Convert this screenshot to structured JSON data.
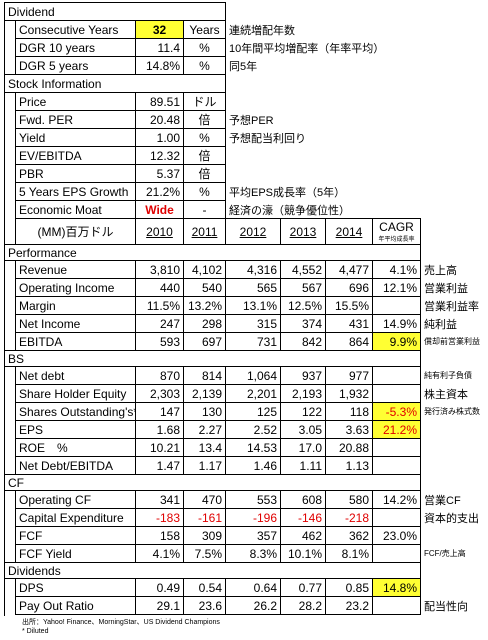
{
  "dividend": {
    "title": "Dividend",
    "rows": [
      {
        "label": "Consecutive Years",
        "value": "32",
        "unit": "Years",
        "note": "連続増配年数",
        "highlight": true
      },
      {
        "label": "DGR 10 years",
        "value": "11.4",
        "unit": "%",
        "note": "10年間平均増配率（年率平均）"
      },
      {
        "label": "DGR 5 years",
        "value": "14.8%",
        "unit": "%",
        "note": "同5年"
      }
    ]
  },
  "stock_information": {
    "title": "Stock Information",
    "rows": [
      {
        "label": "Price",
        "value": "89.51",
        "unit": "ドル"
      },
      {
        "label": "Fwd. PER",
        "value": "20.48",
        "unit": "倍",
        "note": "予想PER"
      },
      {
        "label": "Yield",
        "value": "1.00",
        "unit": "%",
        "note": "予想配当利回り"
      },
      {
        "label": "EV/EBITDA",
        "value": "12.32",
        "unit": "倍"
      },
      {
        "label": "PBR",
        "value": "5.37",
        "unit": "倍"
      },
      {
        "label": "5 Years EPS Growth",
        "value": "21.2%",
        "unit": "%",
        "note": "平均EPS成長率（5年）"
      },
      {
        "label": "Economic Moat",
        "value": "Wide",
        "unit": "-",
        "note": "経済の濠（競争優位性）",
        "color": "#e00000"
      }
    ]
  },
  "financials": {
    "unit_header": "(MM)百万ドル",
    "years": [
      "2010",
      "2011",
      "2012",
      "2013",
      "2014"
    ],
    "cagr_header": "CAGR",
    "cagr_subheader": "年平均成長率",
    "sections": [
      {
        "title": "Performance",
        "rows": [
          {
            "label": "Revenue",
            "values": [
              "3,810",
              "4,102",
              "4,316",
              "4,552",
              "4,477"
            ],
            "cagr": "4.1%",
            "note": "売上高"
          },
          {
            "label": "Operating Income",
            "values": [
              "440",
              "540",
              "565",
              "567",
              "696"
            ],
            "cagr": "12.1%",
            "note": "営業利益"
          },
          {
            "label": "Margin",
            "values": [
              "11.5%",
              "13.2%",
              "13.1%",
              "12.5%",
              "15.5%"
            ],
            "note": "営業利益率"
          },
          {
            "label": "Net Income",
            "values": [
              "247",
              "298",
              "315",
              "374",
              "431"
            ],
            "cagr": "14.9%",
            "note": "純利益"
          },
          {
            "label": "EBITDA",
            "values": [
              "593",
              "697",
              "731",
              "842",
              "864"
            ],
            "cagr": "9.9%",
            "note": "償却前営業利益",
            "highlight": true
          }
        ]
      },
      {
        "title": "BS",
        "rows": [
          {
            "label": "Net debt",
            "values": [
              "870",
              "814",
              "1,064",
              "937",
              "977"
            ],
            "note": "純有利子負債"
          },
          {
            "label": "Share Holder Equity",
            "values": [
              "2,303",
              "2,139",
              "2,201",
              "2,193",
              "1,932"
            ],
            "note": "株主資本"
          },
          {
            "label": "Shares Outstanding's*",
            "values": [
              "147",
              "130",
              "125",
              "122",
              "118"
            ],
            "cagr": "-5.3%",
            "note": "発行済み株式数",
            "highlight": true,
            "cagr_color": "#e00000"
          },
          {
            "label": "EPS",
            "values": [
              "1.68",
              "2.27",
              "2.52",
              "3.05",
              "3.63"
            ],
            "cagr": "21.2%",
            "highlight": true,
            "cagr_color": "#e00000"
          },
          {
            "label": "ROE　%",
            "values": [
              "10.21",
              "13.4",
              "14.53",
              "17.0",
              "20.88"
            ]
          },
          {
            "label": "Net Debt/EBITDA",
            "values": [
              "1.47",
              "1.17",
              "1.46",
              "1.11",
              "1.13"
            ]
          }
        ]
      },
      {
        "title": "CF",
        "rows": [
          {
            "label": "Operating CF",
            "values": [
              "341",
              "470",
              "553",
              "608",
              "580"
            ],
            "cagr": "14.2%",
            "note": "営業CF"
          },
          {
            "label": "Capital Expenditure",
            "values": [
              "-183",
              "-161",
              "-196",
              "-146",
              "-218"
            ],
            "note": "資本的支出",
            "color": "#e00000"
          },
          {
            "label": "FCF",
            "values": [
              "158",
              "309",
              "357",
              "462",
              "362"
            ],
            "cagr": "23.0%"
          },
          {
            "label": "FCF Yield",
            "values": [
              "4.1%",
              "7.5%",
              "8.3%",
              "10.1%",
              "8.1%"
            ],
            "note": "FCF/売上高"
          }
        ]
      },
      {
        "title": "Dividends",
        "rows": [
          {
            "label": "DPS",
            "values": [
              "0.49",
              "0.54",
              "0.64",
              "0.77",
              "0.85"
            ],
            "cagr": "14.8%",
            "highlight": true
          },
          {
            "label": "Pay Out Ratio",
            "values": [
              "29.1",
              "23.6",
              "26.2",
              "28.2",
              "23.2"
            ],
            "note": "配当性向"
          }
        ]
      }
    ]
  },
  "footer": {
    "source": "出所：Yahoo! Finance、MorningStar、US Dividend Champions",
    "footnote": "* Diluted"
  }
}
